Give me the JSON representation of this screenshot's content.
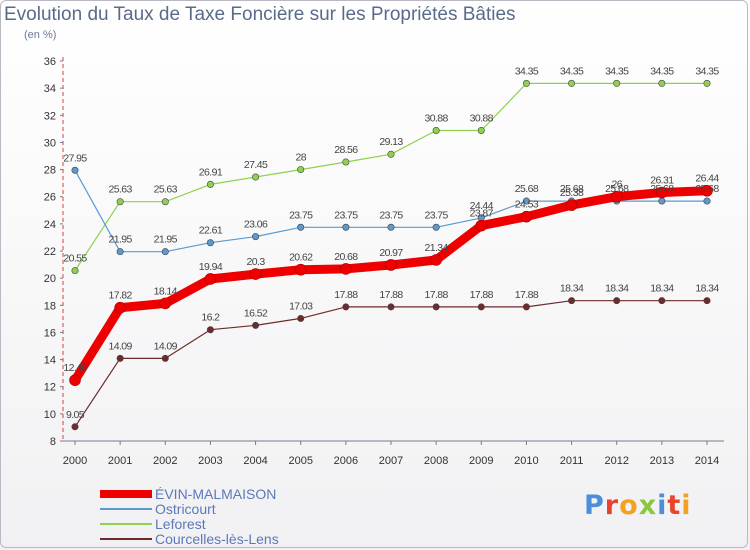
{
  "page": {
    "title": "Evolution du Taux de Taxe Foncière sur les Propriétés Bâties",
    "unit": "(en %)",
    "logo": "Proxiti"
  },
  "chart_data": {
    "type": "line",
    "title": "Evolution du Taux de Taxe Foncière sur les Propriétés Bâties",
    "ylabel": "(en %)",
    "xlabel": "",
    "ylim": [
      8,
      36
    ],
    "yticks": [
      8,
      10,
      12,
      14,
      16,
      18,
      20,
      22,
      24,
      26,
      28,
      30,
      32,
      34,
      36
    ],
    "grid": false,
    "legend_position": "bottom-left",
    "x": [
      "2000",
      "2001",
      "2002",
      "2003",
      "2004",
      "2005",
      "2006",
      "2007",
      "2008",
      "2009",
      "2010",
      "2011",
      "2012",
      "2013",
      "2014"
    ],
    "series": [
      {
        "name": "ÉVIN-MALMAISON",
        "color": "#ee0000",
        "values": [
          12.48,
          17.82,
          18.14,
          19.94,
          20.3,
          20.62,
          20.68,
          20.97,
          21.34,
          23.87,
          24.53,
          25.38,
          26,
          26.31,
          26.44
        ],
        "labels": [
          "12.48",
          "17.82",
          "18.14",
          "19.94",
          "20.3",
          "20.62",
          "20.68",
          "20.97",
          "21.34",
          "23.87",
          "24.53",
          "25.38",
          "26",
          "26.31",
          "26.44"
        ]
      },
      {
        "name": "Ostricourt",
        "color": "#5a9ad0",
        "values": [
          27.95,
          21.95,
          21.95,
          22.61,
          23.06,
          23.75,
          23.75,
          23.75,
          23.75,
          24.44,
          25.68,
          25.68,
          25.68,
          25.68,
          25.68
        ],
        "labels": [
          "27.95",
          "21.95",
          "21.95",
          "22.61",
          "23.06",
          "23.75",
          "23.75",
          "23.75",
          "23.75",
          "24.44",
          "25.68",
          "25.68",
          "25.68",
          "25.68",
          "25.68"
        ]
      },
      {
        "name": "Leforest",
        "color": "#8fd14f",
        "values": [
          20.55,
          25.63,
          25.63,
          26.91,
          27.45,
          28,
          28.56,
          29.13,
          30.88,
          30.88,
          34.35,
          34.35,
          34.35,
          34.35,
          34.35
        ],
        "labels": [
          "20.55",
          "25.63",
          "25.63",
          "26.91",
          "27.45",
          "28",
          "28.56",
          "29.13",
          "30.88",
          "30.88",
          "34.35",
          "34.35",
          "34.35",
          "34.35",
          "34.35"
        ]
      },
      {
        "name": "Courcelles-lès-Lens",
        "color": "#6e2b2b",
        "values": [
          9.05,
          14.09,
          14.09,
          16.2,
          16.52,
          17.03,
          17.88,
          17.88,
          17.88,
          17.88,
          17.88,
          18.34,
          18.34,
          18.34,
          18.34
        ],
        "labels": [
          "9.05",
          "14.09",
          "14.09",
          "16.2",
          "16.52",
          "17.03",
          "17.88",
          "17.88",
          "17.88",
          "17.88",
          "17.88",
          "18.34",
          "18.34",
          "18.34",
          "18.34"
        ]
      }
    ]
  }
}
